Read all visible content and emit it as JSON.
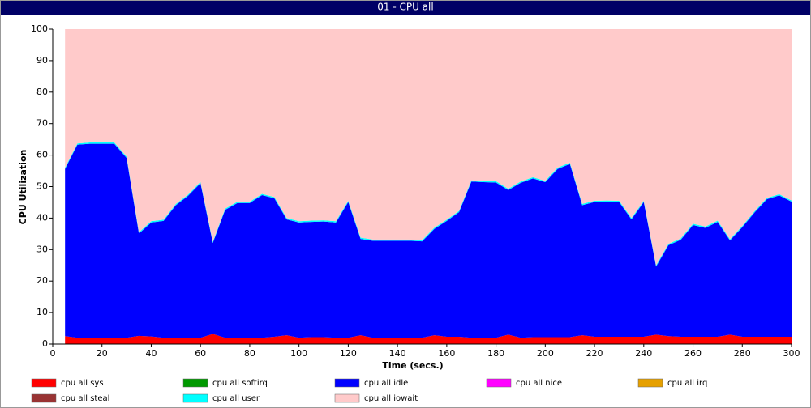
{
  "chart_data": {
    "type": "stacked_area",
    "title": "01 - CPU all",
    "xlabel": "Time (secs.)",
    "ylabel": "CPU Utilization",
    "x": [
      5,
      10,
      15,
      20,
      25,
      30,
      35,
      40,
      45,
      50,
      55,
      60,
      65,
      70,
      75,
      80,
      85,
      90,
      95,
      100,
      105,
      110,
      115,
      120,
      125,
      130,
      135,
      140,
      145,
      150,
      155,
      160,
      165,
      170,
      175,
      180,
      185,
      190,
      195,
      200,
      205,
      210,
      215,
      220,
      225,
      230,
      235,
      240,
      245,
      250,
      255,
      260,
      265,
      270,
      275,
      280,
      285,
      290,
      295,
      300
    ],
    "xlim": [
      0,
      300
    ],
    "xticks": [
      0,
      20,
      40,
      60,
      80,
      100,
      120,
      140,
      160,
      180,
      200,
      220,
      240,
      260,
      280,
      300
    ],
    "ylim": [
      0,
      100
    ],
    "yticks": [
      0,
      10,
      20,
      30,
      40,
      50,
      60,
      70,
      80,
      90,
      100
    ],
    "series": [
      {
        "name": "cpu all sys",
        "color": "#ff0000",
        "values": [
          2.5,
          2,
          1.8,
          2,
          2,
          2,
          2.6,
          2.4,
          2,
          2,
          2,
          2,
          3.2,
          2,
          2,
          2,
          2,
          2.3,
          2.8,
          2,
          2.2,
          2.2,
          2,
          2,
          2.8,
          2,
          2,
          2,
          2,
          2,
          2.8,
          2.3,
          2.3,
          2,
          2,
          2,
          3,
          2,
          2.2,
          2.2,
          2.2,
          2.2,
          2.8,
          2.3,
          2.3,
          2.3,
          2.3,
          2.3,
          3,
          2.5,
          2.3,
          2.3,
          2.3,
          2.3,
          3,
          2.3,
          2.3,
          2.3,
          2.3,
          2.3
        ]
      },
      {
        "name": "cpu all softirq",
        "color": "#009900",
        "values": [
          0,
          0,
          0,
          0,
          0,
          0,
          0,
          0,
          0,
          0,
          0,
          0,
          0,
          0,
          0,
          0,
          0,
          0,
          0,
          0,
          0,
          0,
          0,
          0,
          0,
          0,
          0,
          0,
          0,
          0,
          0,
          0,
          0,
          0,
          0,
          0,
          0,
          0,
          0,
          0,
          0,
          0,
          0,
          0,
          0,
          0,
          0,
          0,
          0,
          0,
          0,
          0,
          0,
          0,
          0,
          0,
          0,
          0,
          0,
          0
        ]
      },
      {
        "name": "cpu all idle",
        "color": "#0000ff",
        "values": [
          53.1,
          61.3,
          61.8,
          61.6,
          61.6,
          57.1,
          32.5,
          36.2,
          37.1,
          42.1,
          45.1,
          49.1,
          28.9,
          40.6,
          42.8,
          42.8,
          45.3,
          44,
          36.8,
          36.6,
          36.6,
          36.7,
          36.6,
          43.1,
          30.6,
          30.8,
          30.8,
          30.8,
          30.8,
          30.6,
          33.8,
          36.8,
          39.6,
          49.6,
          49.4,
          49.3,
          45.9,
          49.2,
          50.4,
          49.2,
          53.4,
          55,
          41.3,
          42.8,
          42.9,
          42.8,
          37.3,
          42.8,
          21.6,
          28.9,
          30.8,
          35.5,
          34.6,
          36.5,
          29.9,
          34.8,
          39.5,
          43.7,
          44.9,
          42.9
        ]
      },
      {
        "name": "cpu all nice",
        "color": "#ff00ff",
        "values": [
          0,
          0,
          0,
          0,
          0,
          0,
          0,
          0,
          0,
          0,
          0,
          0,
          0,
          0,
          0,
          0,
          0,
          0,
          0,
          0,
          0,
          0,
          0,
          0,
          0,
          0,
          0,
          0,
          0,
          0,
          0,
          0,
          0,
          0,
          0,
          0,
          0,
          0,
          0,
          0,
          0,
          0,
          0,
          0,
          0,
          0,
          0,
          0,
          0,
          0,
          0,
          0,
          0,
          0,
          0,
          0,
          0,
          0,
          0,
          0
        ]
      },
      {
        "name": "cpu all irq",
        "color": "#e6a000",
        "values": [
          0,
          0,
          0,
          0,
          0,
          0,
          0,
          0,
          0,
          0,
          0,
          0,
          0,
          0,
          0,
          0,
          0,
          0,
          0,
          0,
          0,
          0,
          0,
          0,
          0,
          0,
          0,
          0,
          0,
          0,
          0,
          0,
          0,
          0,
          0,
          0,
          0,
          0,
          0,
          0,
          0,
          0,
          0,
          0,
          0,
          0,
          0,
          0,
          0,
          0,
          0,
          0,
          0,
          0,
          0,
          0,
          0,
          0,
          0,
          0
        ]
      },
      {
        "name": "cpu all steal",
        "color": "#993333",
        "values": [
          0,
          0,
          0,
          0,
          0,
          0,
          0,
          0,
          0,
          0,
          0,
          0,
          0,
          0,
          0,
          0,
          0,
          0,
          0,
          0,
          0,
          0,
          0,
          0,
          0,
          0,
          0,
          0,
          0,
          0,
          0,
          0,
          0,
          0,
          0,
          0,
          0,
          0,
          0,
          0,
          0,
          0,
          0,
          0,
          0,
          0,
          0,
          0,
          0,
          0,
          0,
          0,
          0,
          0,
          0,
          0,
          0,
          0,
          0,
          0
        ]
      },
      {
        "name": "cpu all user",
        "color": "#00ffff",
        "values": [
          0.4,
          0.4,
          0.4,
          0.4,
          0.4,
          0.4,
          0.4,
          0.4,
          0.4,
          0.4,
          0.4,
          0.4,
          0.4,
          0.4,
          0.4,
          0.4,
          0.4,
          0.4,
          0.4,
          0.4,
          0.4,
          0.4,
          0.4,
          0.4,
          0.4,
          0.4,
          0.4,
          0.4,
          0.4,
          0.4,
          0.4,
          0.4,
          0.4,
          0.4,
          0.4,
          0.4,
          0.4,
          0.4,
          0.4,
          0.4,
          0.4,
          0.4,
          0.4,
          0.4,
          0.4,
          0.4,
          0.4,
          0.4,
          0.4,
          0.4,
          0.4,
          0.4,
          0.4,
          0.4,
          0.4,
          0.4,
          0.4,
          0.4,
          0.4,
          0.4
        ]
      },
      {
        "name": "cpu all iowait",
        "color": "#ffcaca",
        "values": [
          44,
          36.3,
          36,
          36,
          36,
          40.5,
          64.5,
          61,
          60.5,
          55.5,
          52.5,
          48.5,
          67.5,
          57,
          54.8,
          54.8,
          52.3,
          53.3,
          60,
          61,
          60.8,
          60.7,
          61,
          54.5,
          66.2,
          66.8,
          66.8,
          66.8,
          66.8,
          67,
          63,
          60.5,
          57.7,
          48,
          48.2,
          48.3,
          50.7,
          48.4,
          47,
          48.2,
          44,
          42.4,
          55.5,
          54.5,
          54.4,
          54.5,
          60,
          54.5,
          75,
          68.2,
          66.5,
          61.8,
          62.7,
          60.8,
          66.7,
          62.5,
          57.8,
          53.6,
          52.4,
          54.4
        ]
      }
    ]
  }
}
